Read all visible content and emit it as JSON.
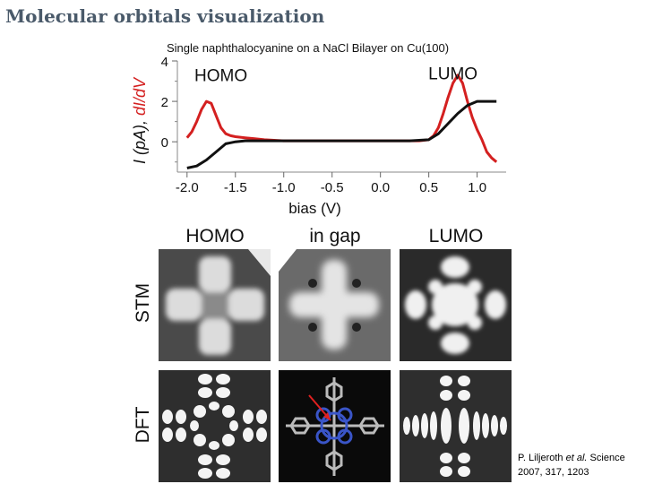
{
  "slide": {
    "title": "Molecular orbitals visualization",
    "subtitle": "Single naphthalocyanine on a NaCl Bilayer on Cu(100)",
    "citation": {
      "author": "P. Liljeroth",
      "etal": "et al.",
      "journal": "Science",
      "ref": "2007, 317, 1203"
    }
  },
  "chart_data": {
    "type": "line",
    "xlabel": "bias (V)",
    "ylabel_black": "I (pA),",
    "ylabel_red": "dI/dV",
    "xlim": [
      -2.1,
      1.3
    ],
    "ylim": [
      -1.5,
      4
    ],
    "xticks": [
      -2.0,
      -1.5,
      -1.0,
      -0.5,
      0.0,
      0.5,
      1.0
    ],
    "xtick_labels": [
      "-2.0",
      "-1.5",
      "-1.0",
      "-0.5",
      "0.0",
      "0.5",
      "1.0"
    ],
    "yticks": [
      0,
      2,
      4
    ],
    "ytick_labels": [
      "0",
      "2",
      "4"
    ],
    "annotations": [
      {
        "text": "HOMO",
        "x": -1.65,
        "y": 3.0
      },
      {
        "text": "LUMO",
        "x": 0.75,
        "y": 3.1
      }
    ],
    "series": [
      {
        "color": "#d42020",
        "x": [
          -2.0,
          -1.95,
          -1.9,
          -1.85,
          -1.8,
          -1.75,
          -1.7,
          -1.65,
          -1.6,
          -1.55,
          -1.5,
          -1.4,
          -1.3,
          -1.2,
          -1.0,
          -0.8,
          -0.6,
          -0.4,
          -0.2,
          0.0,
          0.2,
          0.4,
          0.5,
          0.55,
          0.6,
          0.65,
          0.7,
          0.75,
          0.8,
          0.85,
          0.9,
          0.95,
          1.0,
          1.05,
          1.1,
          1.15,
          1.2
        ],
        "values": [
          0.2,
          0.5,
          1.0,
          1.6,
          2.0,
          1.9,
          1.3,
          0.7,
          0.4,
          0.3,
          0.25,
          0.2,
          0.15,
          0.1,
          0.05,
          0.05,
          0.05,
          0.05,
          0.05,
          0.05,
          0.05,
          0.05,
          0.1,
          0.3,
          0.7,
          1.4,
          2.2,
          2.9,
          3.3,
          2.9,
          2.0,
          1.2,
          0.6,
          0.1,
          -0.5,
          -0.8,
          -1.0
        ]
      },
      {
        "color": "#111111",
        "x": [
          -2.0,
          -1.9,
          -1.8,
          -1.7,
          -1.6,
          -1.5,
          -1.4,
          -1.2,
          -1.0,
          -0.5,
          0.0,
          0.3,
          0.5,
          0.6,
          0.7,
          0.8,
          0.9,
          1.0,
          1.1,
          1.2
        ],
        "values": [
          -1.3,
          -1.2,
          -0.9,
          -0.5,
          -0.1,
          0.0,
          0.05,
          0.05,
          0.05,
          0.05,
          0.05,
          0.05,
          0.1,
          0.4,
          0.9,
          1.4,
          1.8,
          2.0,
          2.0,
          2.0
        ]
      }
    ]
  },
  "panels": {
    "headers": [
      "HOMO",
      "in gap",
      "LUMO"
    ],
    "rows": [
      "STM",
      "DFT"
    ]
  }
}
